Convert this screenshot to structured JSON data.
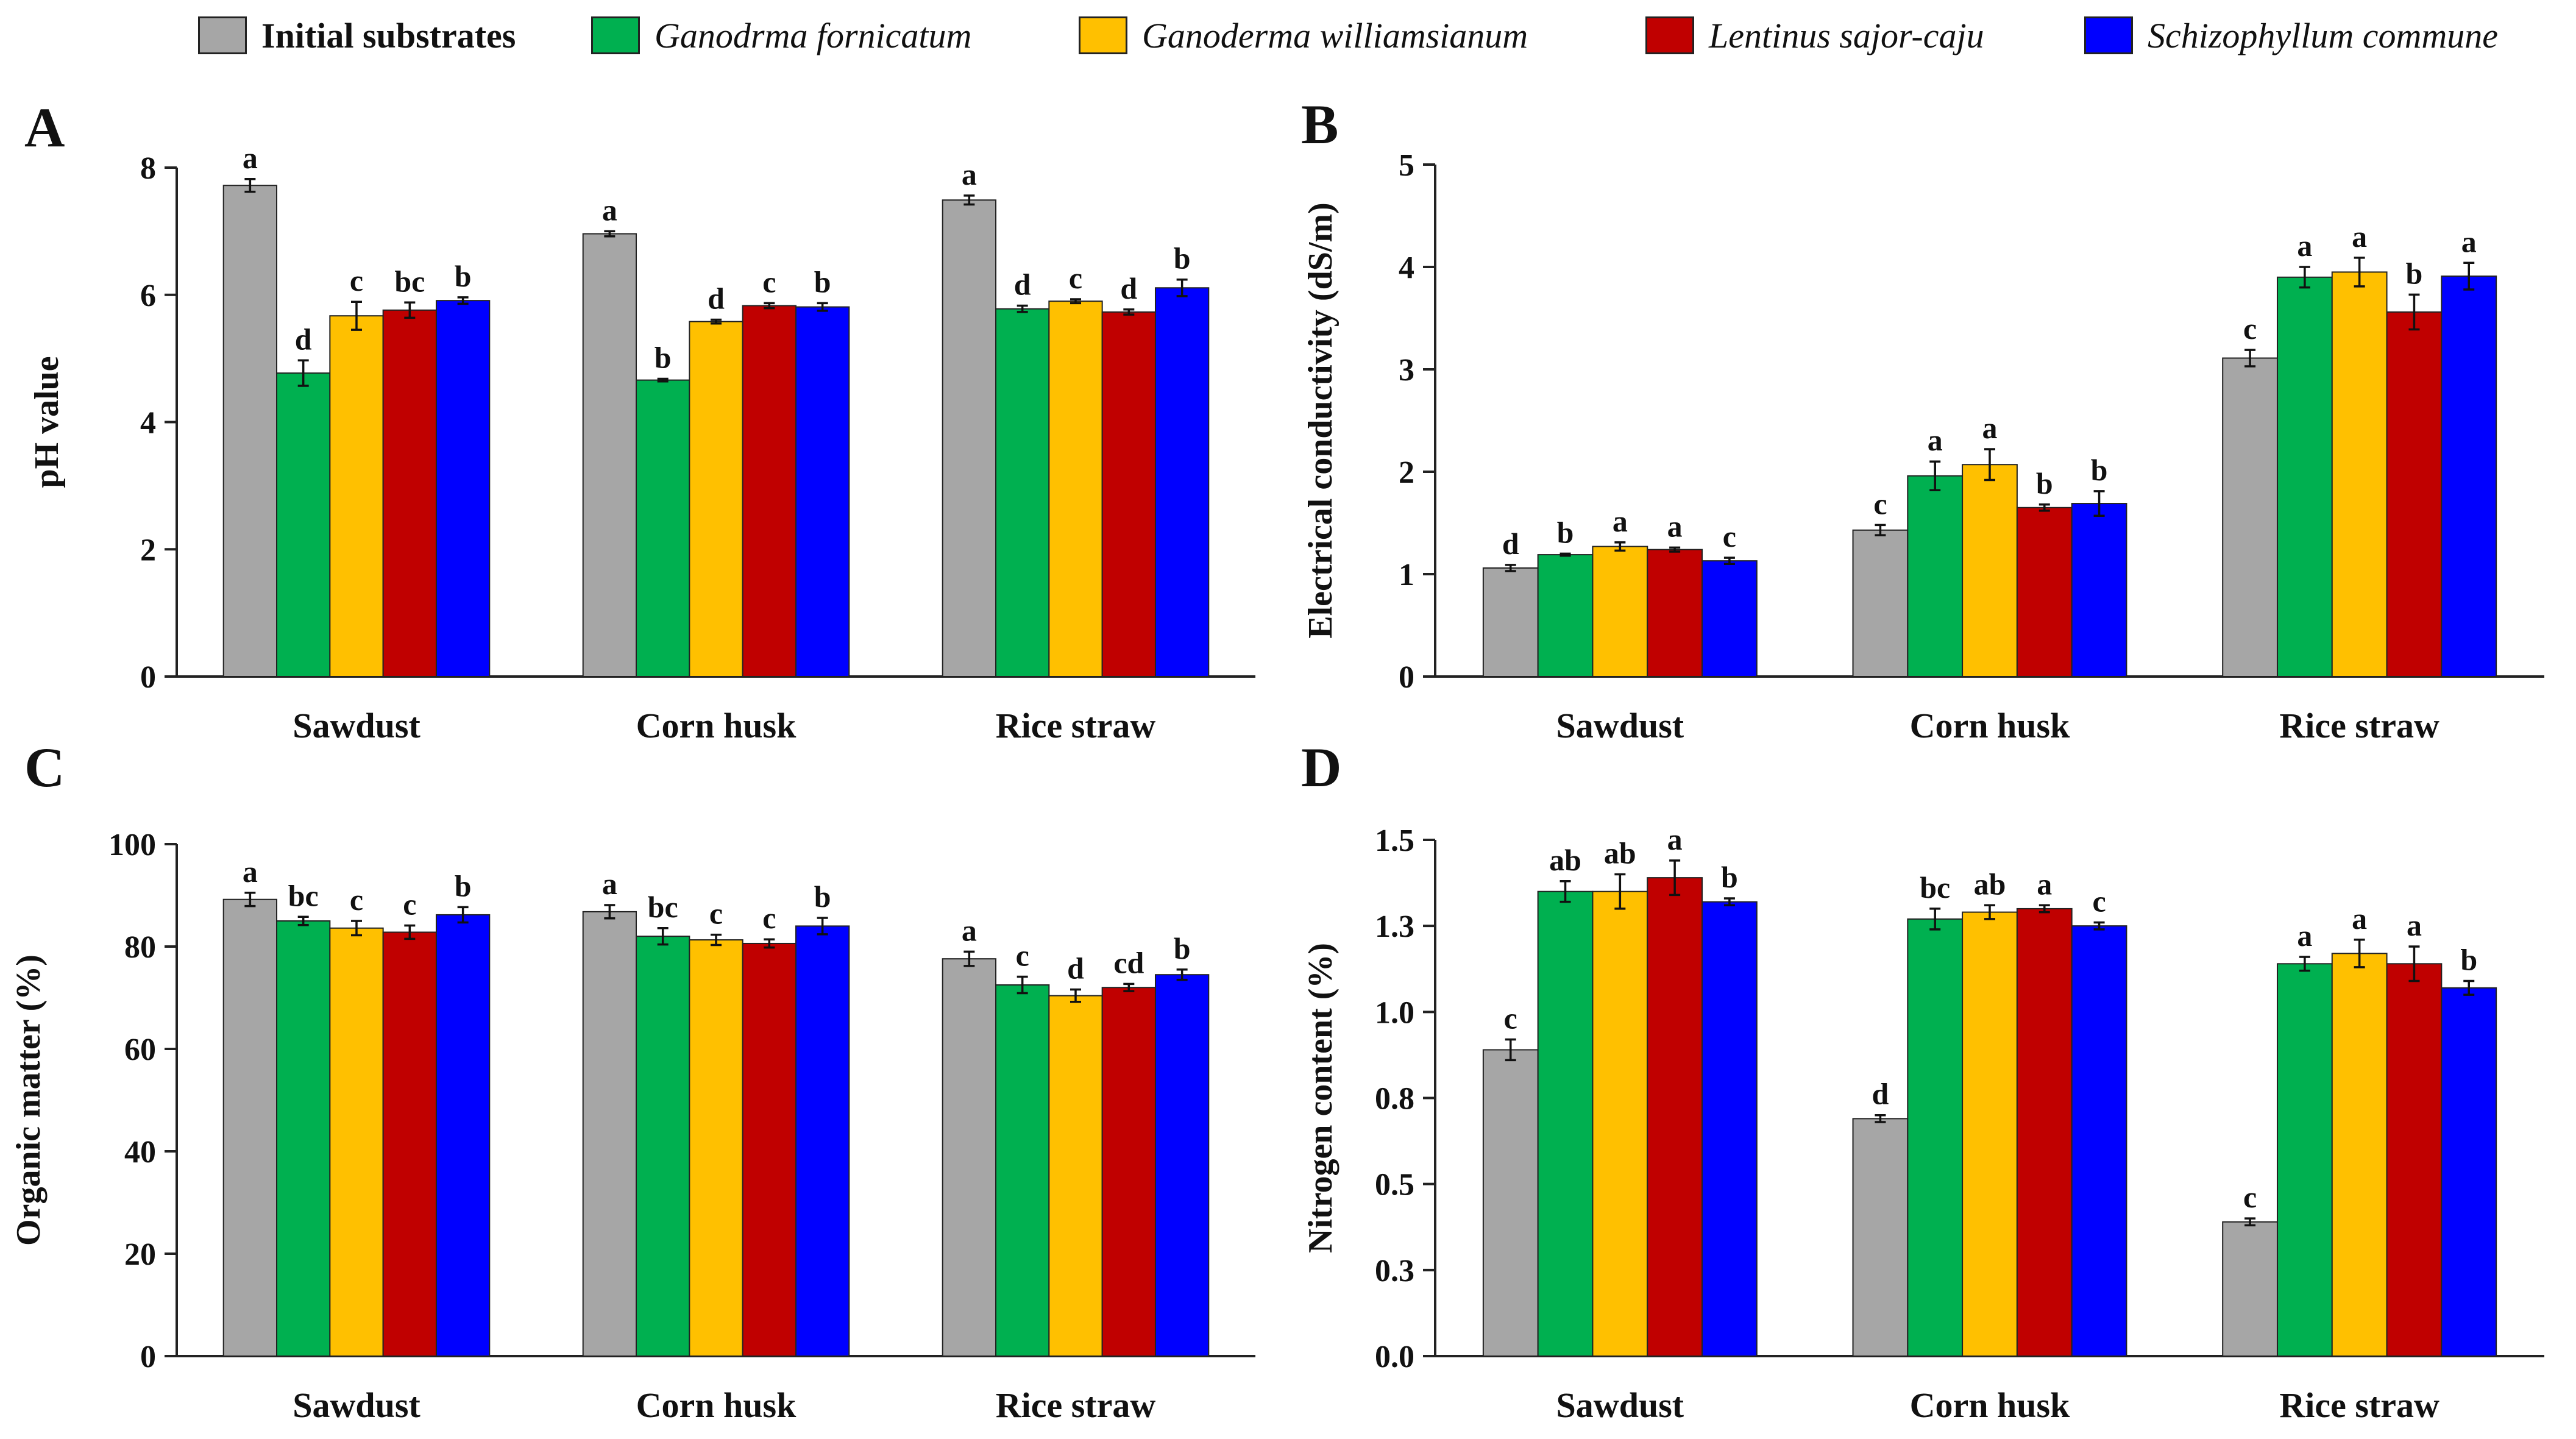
{
  "legend": [
    {
      "label": "Initial substrates",
      "color": "#a6a6a6"
    },
    {
      "label": "Ganodrma fornicatum",
      "color": "#00b050"
    },
    {
      "label": "Ganoderma williamsianum",
      "color": "#ffc000"
    },
    {
      "label": "Lentinus sajor-caju",
      "color": "#c00000"
    },
    {
      "label": "Schizophyllum commune",
      "color": "#0000ff"
    }
  ],
  "chart_data": [
    {
      "panel": "A",
      "type": "bar",
      "ylabel": "pH value",
      "ylim": [
        0,
        8
      ],
      "yticks": [
        "0",
        "2",
        "4",
        "6",
        "8"
      ],
      "categories": [
        "Sawdust",
        "Corn husk",
        "Rice straw"
      ],
      "series": [
        {
          "name": "Initial substrates",
          "values": [
            7.72,
            6.96,
            7.49
          ],
          "errors": [
            0.1,
            0.04,
            0.07
          ],
          "letters": [
            "a",
            "a",
            "a"
          ]
        },
        {
          "name": "Ganodrma fornicatum",
          "values": [
            4.77,
            4.66,
            5.78
          ],
          "errors": [
            0.2,
            0.02,
            0.05
          ],
          "letters": [
            "d",
            "b",
            "d"
          ]
        },
        {
          "name": "Ganoderma williamsianum",
          "values": [
            5.67,
            5.58,
            5.9
          ],
          "errors": [
            0.22,
            0.03,
            0.03
          ],
          "letters": [
            "c",
            "d",
            "c"
          ]
        },
        {
          "name": "Lentinus sajor-caju",
          "values": [
            5.76,
            5.83,
            5.73
          ],
          "errors": [
            0.12,
            0.04,
            0.04
          ],
          "letters": [
            "bc",
            "c",
            "d"
          ]
        },
        {
          "name": "Schizophyllum commune",
          "values": [
            5.91,
            5.81,
            6.11
          ],
          "errors": [
            0.05,
            0.06,
            0.13
          ],
          "letters": [
            "b",
            "b",
            "b"
          ]
        }
      ]
    },
    {
      "panel": "B",
      "type": "bar",
      "ylabel": "Electrical conductivity (dS/m)",
      "ylim": [
        0,
        5
      ],
      "yticks": [
        "0",
        "1",
        "2",
        "3",
        "4",
        "5"
      ],
      "categories": [
        "Sawdust",
        "Corn husk",
        "Rice straw"
      ],
      "series": [
        {
          "name": "Initial substrates",
          "values": [
            1.06,
            1.43,
            3.11
          ],
          "errors": [
            0.03,
            0.05,
            0.08
          ],
          "letters": [
            "d",
            "c",
            "c"
          ]
        },
        {
          "name": "Ganodrma fornicatum",
          "values": [
            1.19,
            1.96,
            3.9
          ],
          "errors": [
            0.01,
            0.14,
            0.1
          ],
          "letters": [
            "b",
            "a",
            "a"
          ]
        },
        {
          "name": "Ganoderma williamsianum",
          "values": [
            1.27,
            2.07,
            3.95
          ],
          "errors": [
            0.04,
            0.15,
            0.14
          ],
          "letters": [
            "a",
            "a",
            "a"
          ]
        },
        {
          "name": "Lentinus sajor-caju",
          "values": [
            1.24,
            1.65,
            3.56
          ],
          "errors": [
            0.02,
            0.03,
            0.17
          ],
          "letters": [
            "a",
            "b",
            "b"
          ]
        },
        {
          "name": "Schizophyllum commune",
          "values": [
            1.13,
            1.69,
            3.91
          ],
          "errors": [
            0.03,
            0.12,
            0.13
          ],
          "letters": [
            "c",
            "b",
            "a"
          ]
        }
      ]
    },
    {
      "panel": "C",
      "type": "bar",
      "ylabel": "Organic matter (%)",
      "ylim": [
        0,
        100
      ],
      "yticks": [
        "0",
        "20",
        "40",
        "60",
        "80",
        "100"
      ],
      "categories": [
        "Sawdust",
        "Corn husk",
        "Rice straw"
      ],
      "series": [
        {
          "name": "Initial substrates",
          "values": [
            89.2,
            86.8,
            77.6
          ],
          "errors": [
            1.3,
            1.3,
            1.4
          ],
          "letters": [
            "a",
            "a",
            "a"
          ]
        },
        {
          "name": "Ganodrma fornicatum",
          "values": [
            85.0,
            82.0,
            72.5
          ],
          "errors": [
            0.8,
            1.6,
            1.6
          ],
          "letters": [
            "bc",
            "bc",
            "c"
          ]
        },
        {
          "name": "Ganoderma williamsianum",
          "values": [
            83.6,
            81.3,
            70.4
          ],
          "errors": [
            1.4,
            1.0,
            1.2
          ],
          "letters": [
            "c",
            "c",
            "d"
          ]
        },
        {
          "name": "Lentinus sajor-caju",
          "values": [
            82.8,
            80.6,
            72.0
          ],
          "errors": [
            1.3,
            0.8,
            0.7
          ],
          "letters": [
            "c",
            "c",
            "cd"
          ]
        },
        {
          "name": "Schizophyllum commune",
          "values": [
            86.2,
            84.0,
            74.5
          ],
          "errors": [
            1.5,
            1.6,
            1.0
          ],
          "letters": [
            "b",
            "b",
            "b"
          ]
        }
      ]
    },
    {
      "panel": "D",
      "type": "bar",
      "ylabel": "Nitrogen content (%)",
      "ylim": [
        0,
        1.5
      ],
      "yticks": [
        "0.0",
        "0.3",
        "0.5",
        "0.8",
        "1.0",
        "1.3",
        "1.5"
      ],
      "categories": [
        "Sawdust",
        "Corn husk",
        "Rice straw"
      ],
      "series": [
        {
          "name": "Initial substrates",
          "values": [
            0.89,
            0.69,
            0.39
          ],
          "errors": [
            0.03,
            0.01,
            0.01
          ],
          "letters": [
            "c",
            "d",
            "c"
          ]
        },
        {
          "name": "Ganodrma fornicatum",
          "values": [
            1.35,
            1.27,
            1.14
          ],
          "errors": [
            0.03,
            0.03,
            0.02
          ],
          "letters": [
            "ab",
            "bc",
            "a"
          ]
        },
        {
          "name": "Ganoderma williamsianum",
          "values": [
            1.35,
            1.29,
            1.17
          ],
          "errors": [
            0.05,
            0.02,
            0.04
          ],
          "letters": [
            "ab",
            "ab",
            "a"
          ]
        },
        {
          "name": "Lentinus sajor-caju",
          "values": [
            1.39,
            1.3,
            1.14
          ],
          "errors": [
            0.05,
            0.01,
            0.05
          ],
          "letters": [
            "a",
            "a",
            "a"
          ]
        },
        {
          "name": "Schizophyllum commune",
          "values": [
            1.32,
            1.25,
            1.07
          ],
          "errors": [
            0.01,
            0.01,
            0.02
          ],
          "letters": [
            "b",
            "c",
            "b"
          ]
        }
      ]
    }
  ]
}
